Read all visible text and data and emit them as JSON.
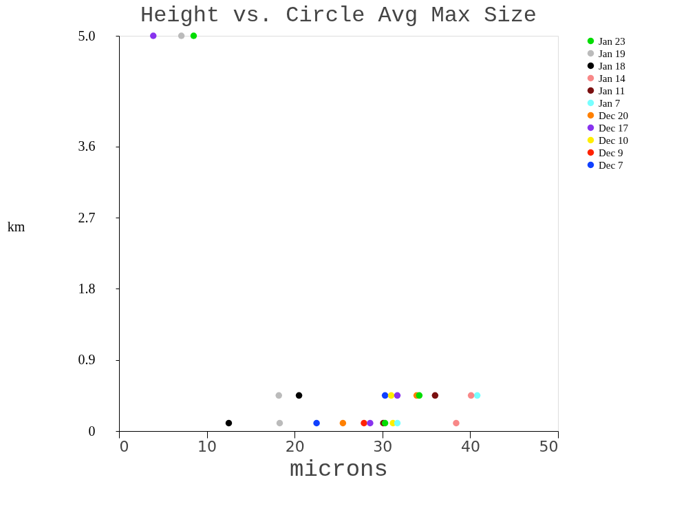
{
  "chart_data": {
    "type": "scatter",
    "title": "Height vs. Circle Avg Max Size",
    "xlabel": "microns",
    "ylabel": "km",
    "xlim": [
      0,
      50
    ],
    "xticks": [
      0,
      10,
      20,
      30,
      40,
      50
    ],
    "ylim": [
      0,
      5.0
    ],
    "yticks": [
      0,
      0.9,
      1.8,
      2.7,
      3.6,
      {
        "value": 5.0,
        "label": "5.0"
      }
    ],
    "grid": false,
    "legend": "right",
    "marker": "circle",
    "series": [
      {
        "name": "Jan 23",
        "color": "#00dd00",
        "x": [
          30.3,
          34.2,
          8.5
        ],
        "values": [
          0.1,
          0.45,
          5.0
        ]
      },
      {
        "name": "Jan 19",
        "color": "#bbbbbb",
        "x": [
          18.3,
          18.2,
          7.1
        ],
        "values": [
          0.1,
          0.45,
          5.0
        ]
      },
      {
        "name": "Jan 18",
        "color": "#000000",
        "x": [
          12.5,
          20.5
        ],
        "values": [
          0.1,
          0.45
        ]
      },
      {
        "name": "Jan 14",
        "color": "#f88888",
        "x": [
          38.4,
          40.1
        ],
        "values": [
          0.1,
          0.45
        ]
      },
      {
        "name": "Jan 11",
        "color": "#7a1010",
        "x": [
          30.1,
          36.0
        ],
        "values": [
          0.1,
          0.45
        ]
      },
      {
        "name": "Jan 7",
        "color": "#77ffff",
        "x": [
          31.7,
          40.8
        ],
        "values": [
          0.1,
          0.45
        ]
      },
      {
        "name": "Dec 20",
        "color": "#ff8000",
        "x": [
          25.5,
          33.9
        ],
        "values": [
          0.1,
          0.45
        ]
      },
      {
        "name": "Dec 17",
        "color": "#8833ee",
        "x": [
          28.6,
          31.7,
          3.9
        ],
        "values": [
          0.1,
          0.45,
          5.0
        ]
      },
      {
        "name": "Dec 10",
        "color": "#ffee00",
        "x": [
          31.2,
          31.0
        ],
        "values": [
          0.1,
          0.45
        ]
      },
      {
        "name": "Dec 9",
        "color": "#ff2200",
        "x": [
          27.9
        ],
        "values": [
          0.1
        ]
      },
      {
        "name": "Dec 7",
        "color": "#1040ff",
        "x": [
          22.5,
          30.3
        ],
        "values": [
          0.1,
          0.45
        ]
      }
    ]
  }
}
